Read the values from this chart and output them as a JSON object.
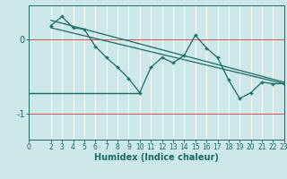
{
  "xlabel": "Humidex (Indice chaleur)",
  "bg_color": "#cce8e8",
  "grid_color": "#ffffff",
  "line_color": "#1a6b60",
  "red_line_color": "#cc3333",
  "xlim": [
    0,
    23
  ],
  "ylim": [
    -1.35,
    0.45
  ],
  "yticks": [
    -1,
    0
  ],
  "xticks": [
    0,
    2,
    3,
    4,
    5,
    6,
    7,
    8,
    9,
    10,
    11,
    12,
    13,
    14,
    15,
    16,
    17,
    18,
    19,
    20,
    21,
    22,
    23
  ],
  "series1_x": [
    2,
    3,
    4,
    5,
    6,
    7,
    8,
    9,
    10,
    11,
    12,
    13,
    14,
    15,
    16,
    17,
    18,
    19,
    20,
    21,
    22,
    23
  ],
  "series1_y": [
    0.18,
    0.3,
    0.15,
    0.13,
    -0.1,
    -0.25,
    -0.38,
    -0.53,
    -0.72,
    -0.38,
    -0.25,
    -0.32,
    -0.22,
    0.05,
    -0.12,
    -0.25,
    -0.55,
    -0.8,
    -0.72,
    -0.58,
    -0.6,
    -0.6
  ],
  "trend1_x": [
    2,
    23
  ],
  "trend1_y": [
    0.25,
    -0.58
  ],
  "trend2_x": [
    2,
    23
  ],
  "trend2_y": [
    0.15,
    -0.6
  ],
  "hline_y": -0.72,
  "hline_x_start": 0,
  "hline_x_end": 10
}
